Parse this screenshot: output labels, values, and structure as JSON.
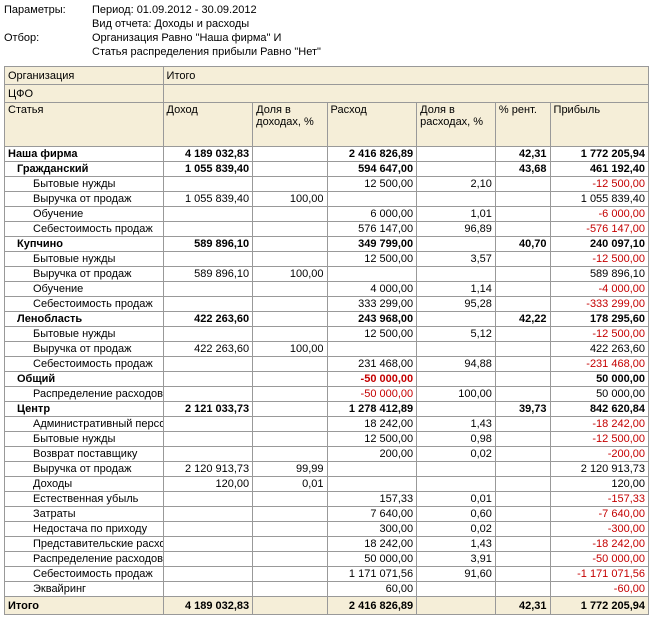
{
  "params": {
    "label_params": "Параметры:",
    "label_filter": "Отбор:",
    "period": "Период: 01.09.2012 - 30.09.2012",
    "report": "Вид отчета: Доходы и расходы",
    "filter1": "Организация Равно \"Наша фирма\" И",
    "filter2": "Статья распределения прибыли Равно \"Нет\""
  },
  "headers": {
    "org": "Организация",
    "cfo": "ЦФО",
    "stat": "Статья",
    "total": "Итого",
    "income": "Доход",
    "inc_share": "Доля в доходах, %",
    "expense": "Расход",
    "exp_share": "Доля в расходах, %",
    "rent": "% рент.",
    "profit": "Прибыль",
    "grand": "Итого"
  },
  "rows": [
    {
      "lvl": 0,
      "b": 1,
      "name": "Наша фирма",
      "a": "4 189 032,83",
      "b2": "",
      "c": "2 416 826,89",
      "d": "",
      "e": "42,31",
      "f": "1 772 205,94"
    },
    {
      "lvl": 1,
      "b": 1,
      "name": "Гражданский",
      "a": "1 055 839,40",
      "b2": "",
      "c": "594 647,00",
      "d": "",
      "e": "43,68",
      "f": "461 192,40"
    },
    {
      "lvl": 2,
      "name": "Бытовые нужды",
      "a": "",
      "b2": "",
      "c": "12 500,00",
      "d": "2,10",
      "e": "",
      "f": "-12 500,00",
      "neg": 1
    },
    {
      "lvl": 2,
      "name": "Выручка от продаж",
      "a": "1 055 839,40",
      "b2": "100,00",
      "c": "",
      "d": "",
      "e": "",
      "f": "1 055 839,40"
    },
    {
      "lvl": 2,
      "name": "Обучение",
      "a": "",
      "b2": "",
      "c": "6 000,00",
      "d": "1,01",
      "e": "",
      "f": "-6 000,00",
      "neg": 1
    },
    {
      "lvl": 2,
      "name": "Себестоимость продаж",
      "a": "",
      "b2": "",
      "c": "576 147,00",
      "d": "96,89",
      "e": "",
      "f": "-576 147,00",
      "neg": 1
    },
    {
      "lvl": 1,
      "b": 1,
      "name": "Купчино",
      "a": "589 896,10",
      "b2": "",
      "c": "349 799,00",
      "d": "",
      "e": "40,70",
      "f": "240 097,10"
    },
    {
      "lvl": 2,
      "name": "Бытовые нужды",
      "a": "",
      "b2": "",
      "c": "12 500,00",
      "d": "3,57",
      "e": "",
      "f": "-12 500,00",
      "neg": 1
    },
    {
      "lvl": 2,
      "name": "Выручка от продаж",
      "a": "589 896,10",
      "b2": "100,00",
      "c": "",
      "d": "",
      "e": "",
      "f": "589 896,10"
    },
    {
      "lvl": 2,
      "name": "Обучение",
      "a": "",
      "b2": "",
      "c": "4 000,00",
      "d": "1,14",
      "e": "",
      "f": "-4 000,00",
      "neg": 1
    },
    {
      "lvl": 2,
      "name": "Себестоимость продаж",
      "a": "",
      "b2": "",
      "c": "333 299,00",
      "d": "95,28",
      "e": "",
      "f": "-333 299,00",
      "neg": 1
    },
    {
      "lvl": 1,
      "b": 1,
      "name": "Ленобласть",
      "a": "422 263,60",
      "b2": "",
      "c": "243 968,00",
      "d": "",
      "e": "42,22",
      "f": "178 295,60"
    },
    {
      "lvl": 2,
      "name": "Бытовые нужды",
      "a": "",
      "b2": "",
      "c": "12 500,00",
      "d": "5,12",
      "e": "",
      "f": "-12 500,00",
      "neg": 1
    },
    {
      "lvl": 2,
      "name": "Выручка от продаж",
      "a": "422 263,60",
      "b2": "100,00",
      "c": "",
      "d": "",
      "e": "",
      "f": "422 263,60"
    },
    {
      "lvl": 2,
      "name": "Себестоимость продаж",
      "a": "",
      "b2": "",
      "c": "231 468,00",
      "d": "94,88",
      "e": "",
      "f": "-231 468,00",
      "neg": 1
    },
    {
      "lvl": 1,
      "b": 1,
      "name": "Общий",
      "a": "",
      "b2": "",
      "c": "-50 000,00",
      "cneg": 1,
      "d": "",
      "e": "",
      "f": "50 000,00"
    },
    {
      "lvl": 2,
      "name": "Распределение расходов",
      "a": "",
      "b2": "",
      "c": "-50 000,00",
      "cneg": 1,
      "d": "100,00",
      "e": "",
      "f": "50 000,00"
    },
    {
      "lvl": 1,
      "b": 1,
      "name": "Центр",
      "a": "2 121 033,73",
      "b2": "",
      "c": "1 278 412,89",
      "d": "",
      "e": "39,73",
      "f": "842 620,84"
    },
    {
      "lvl": 2,
      "name": "Административный персонал",
      "a": "",
      "b2": "",
      "c": "18 242,00",
      "d": "1,43",
      "e": "",
      "f": "-18 242,00",
      "neg": 1
    },
    {
      "lvl": 2,
      "name": "Бытовые нужды",
      "a": "",
      "b2": "",
      "c": "12 500,00",
      "d": "0,98",
      "e": "",
      "f": "-12 500,00",
      "neg": 1
    },
    {
      "lvl": 2,
      "name": "Возврат поставщику",
      "a": "",
      "b2": "",
      "c": "200,00",
      "d": "0,02",
      "e": "",
      "f": "-200,00",
      "neg": 1
    },
    {
      "lvl": 2,
      "name": "Выручка от продаж",
      "a": "2 120 913,73",
      "b2": "99,99",
      "c": "",
      "d": "",
      "e": "",
      "f": "2 120 913,73"
    },
    {
      "lvl": 2,
      "name": "Доходы",
      "a": "120,00",
      "b2": "0,01",
      "c": "",
      "d": "",
      "e": "",
      "f": "120,00"
    },
    {
      "lvl": 2,
      "name": "Естественная убыль",
      "a": "",
      "b2": "",
      "c": "157,33",
      "d": "0,01",
      "e": "",
      "f": "-157,33",
      "neg": 1
    },
    {
      "lvl": 2,
      "name": "Затраты",
      "a": "",
      "b2": "",
      "c": "7 640,00",
      "d": "0,60",
      "e": "",
      "f": "-7 640,00",
      "neg": 1
    },
    {
      "lvl": 2,
      "name": "Недостача по приходу",
      "a": "",
      "b2": "",
      "c": "300,00",
      "d": "0,02",
      "e": "",
      "f": "-300,00",
      "neg": 1
    },
    {
      "lvl": 2,
      "name": "Представительские расходы",
      "a": "",
      "b2": "",
      "c": "18 242,00",
      "d": "1,43",
      "e": "",
      "f": "-18 242,00",
      "neg": 1
    },
    {
      "lvl": 2,
      "name": "Распределение расходов",
      "a": "",
      "b2": "",
      "c": "50 000,00",
      "d": "3,91",
      "e": "",
      "f": "-50 000,00",
      "neg": 1
    },
    {
      "lvl": 2,
      "name": "Себестоимость продаж",
      "a": "",
      "b2": "",
      "c": "1 171 071,56",
      "d": "91,60",
      "e": "",
      "f": "-1 171 071,56",
      "neg": 1
    },
    {
      "lvl": 2,
      "name": "Эквайринг",
      "a": "",
      "b2": "",
      "c": "60,00",
      "d": "",
      "e": "",
      "f": "-60,00",
      "neg": 1
    }
  ],
  "grand": {
    "a": "4 189 032,83",
    "c": "2 416 826,89",
    "e": "42,31",
    "f": "1 772 205,94"
  }
}
